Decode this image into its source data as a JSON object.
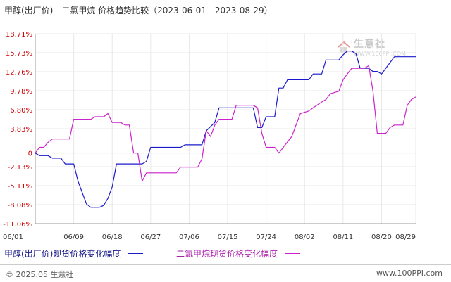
{
  "title": "甲醇(出厂价) - 二氯甲烷 价格趋势比较（2023-06-01 - 2023-08-29）",
  "legend": {
    "series1": "甲醇(出厂价)现货价格变化幅度",
    "series2": "二氯甲烷现货价格变化幅度"
  },
  "watermark": {
    "brand_cn": "生意社",
    "brand_en": "WWW.100PPI.COM"
  },
  "footer": {
    "copyright": "© 2025.05 生意社",
    "site": "www.100PPI.com"
  },
  "colors": {
    "series1": "#1a1acc",
    "series2": "#cc22cc",
    "ytick_text": "#cc0000",
    "axis": "#999999",
    "grid": "#e8e8e8"
  },
  "chart_data": {
    "type": "line",
    "title": "甲醇(出厂价) - 二氯甲烷 价格趋势比较（2023-06-01 - 2023-08-29）",
    "xlabel": "",
    "ylabel": "",
    "xlim": [
      "2023-06-01",
      "2023-08-29"
    ],
    "ylim": [
      -11.06,
      18.71
    ],
    "grid": true,
    "legend_placement": "bottom",
    "x_ticks": [
      "06/01",
      "06/09",
      "06/18",
      "06/27",
      "07/06",
      "07/15",
      "07/24",
      "08/02",
      "08/11",
      "08/20",
      "08/29"
    ],
    "y_ticks": [
      "18.71%",
      "15.73%",
      "12.76%",
      "9.78%",
      "6.80%",
      "3.83%",
      "0",
      "-2.13%",
      "-5.11%",
      "-8.08%",
      "-11.06%"
    ],
    "y_tick_values": [
      18.71,
      15.73,
      12.76,
      9.78,
      6.8,
      3.83,
      0,
      -2.13,
      -5.11,
      -8.08,
      -11.06
    ],
    "series": [
      {
        "name": "甲醇(出厂价)现货价格变化幅度",
        "points": [
          [
            "2023-06-01",
            0
          ],
          [
            "2023-06-02",
            -0.4
          ],
          [
            "2023-06-04",
            -0.4
          ],
          [
            "2023-06-05",
            -0.8
          ],
          [
            "2023-06-07",
            -0.8
          ],
          [
            "2023-06-08",
            -1.7
          ],
          [
            "2023-06-10",
            -1.7
          ],
          [
            "2023-06-11",
            -4.4
          ],
          [
            "2023-06-12",
            -6.2
          ],
          [
            "2023-06-13",
            -8.0
          ],
          [
            "2023-06-14",
            -8.5
          ],
          [
            "2023-06-16",
            -8.5
          ],
          [
            "2023-06-17",
            -8.2
          ],
          [
            "2023-06-18",
            -7.1
          ],
          [
            "2023-06-19",
            -5.3
          ],
          [
            "2023-06-20",
            -1.7
          ],
          [
            "2023-06-26",
            -1.7
          ],
          [
            "2023-06-27",
            -1.3
          ],
          [
            "2023-06-28",
            0.9
          ],
          [
            "2023-07-05",
            0.9
          ],
          [
            "2023-07-06",
            1.3
          ],
          [
            "2023-07-10",
            1.3
          ],
          [
            "2023-07-11",
            3.5
          ],
          [
            "2023-07-13",
            4.8
          ],
          [
            "2023-07-14",
            7.1
          ],
          [
            "2023-07-19",
            7.1
          ],
          [
            "2023-07-22",
            7.1
          ],
          [
            "2023-07-23",
            4.0
          ],
          [
            "2023-07-24",
            4.0
          ],
          [
            "2023-07-25",
            5.7
          ],
          [
            "2023-07-27",
            5.7
          ],
          [
            "2023-07-28",
            10.2
          ],
          [
            "2023-07-29",
            10.2
          ],
          [
            "2023-07-30",
            11.5
          ],
          [
            "2023-08-04",
            11.5
          ],
          [
            "2023-08-05",
            12.4
          ],
          [
            "2023-08-07",
            12.4
          ],
          [
            "2023-08-08",
            14.6
          ],
          [
            "2023-08-11",
            14.6
          ],
          [
            "2023-08-12",
            15.4
          ],
          [
            "2023-08-13",
            16.0
          ],
          [
            "2023-08-14",
            16.0
          ],
          [
            "2023-08-15",
            15.6
          ],
          [
            "2023-08-16",
            13.3
          ],
          [
            "2023-08-18",
            13.3
          ],
          [
            "2023-08-19",
            12.8
          ],
          [
            "2023-08-20",
            12.8
          ],
          [
            "2023-08-21",
            12.4
          ],
          [
            "2023-08-22",
            13.3
          ],
          [
            "2023-08-23",
            14.2
          ],
          [
            "2023-08-24",
            15.1
          ],
          [
            "2023-08-29",
            15.1
          ]
        ]
      },
      {
        "name": "二氯甲烷现货价格变化幅度",
        "points": [
          [
            "2023-06-01",
            0
          ],
          [
            "2023-06-02",
            0.9
          ],
          [
            "2023-06-03",
            0.9
          ],
          [
            "2023-06-04",
            1.7
          ],
          [
            "2023-06-05",
            2.2
          ],
          [
            "2023-06-09",
            2.2
          ],
          [
            "2023-06-10",
            5.3
          ],
          [
            "2023-06-14",
            5.3
          ],
          [
            "2023-06-15",
            5.7
          ],
          [
            "2023-06-17",
            5.7
          ],
          [
            "2023-06-18",
            6.2
          ],
          [
            "2023-06-19",
            4.8
          ],
          [
            "2023-06-21",
            4.8
          ],
          [
            "2023-06-22",
            4.4
          ],
          [
            "2023-06-23",
            4.4
          ],
          [
            "2023-06-24",
            0
          ],
          [
            "2023-06-25",
            0
          ],
          [
            "2023-06-26",
            -4.4
          ],
          [
            "2023-06-27",
            -3.1
          ],
          [
            "2023-06-28",
            -3.1
          ],
          [
            "2023-07-04",
            -3.1
          ],
          [
            "2023-07-05",
            -2.2
          ],
          [
            "2023-07-09",
            -2.2
          ],
          [
            "2023-07-10",
            -0.9
          ],
          [
            "2023-07-11",
            3.5
          ],
          [
            "2023-07-12",
            2.6
          ],
          [
            "2023-07-13",
            4.4
          ],
          [
            "2023-07-14",
            5.3
          ],
          [
            "2023-07-17",
            5.3
          ],
          [
            "2023-07-18",
            7.5
          ],
          [
            "2023-07-22",
            7.5
          ],
          [
            "2023-07-23",
            7.1
          ],
          [
            "2023-07-24",
            3.1
          ],
          [
            "2023-07-25",
            0.9
          ],
          [
            "2023-07-26",
            0.9
          ],
          [
            "2023-07-27",
            0.9
          ],
          [
            "2023-07-28",
            0
          ],
          [
            "2023-07-29",
            0.9
          ],
          [
            "2023-07-31",
            2.6
          ],
          [
            "2023-08-01",
            4.4
          ],
          [
            "2023-08-02",
            6.2
          ],
          [
            "2023-08-04",
            6.6
          ],
          [
            "2023-08-05",
            7.1
          ],
          [
            "2023-08-07",
            8.0
          ],
          [
            "2023-08-08",
            8.4
          ],
          [
            "2023-08-09",
            9.3
          ],
          [
            "2023-08-11",
            9.7
          ],
          [
            "2023-08-12",
            11.5
          ],
          [
            "2023-08-13",
            12.4
          ],
          [
            "2023-08-14",
            13.3
          ],
          [
            "2023-08-17",
            13.3
          ],
          [
            "2023-08-18",
            13.7
          ],
          [
            "2023-08-19",
            9.7
          ],
          [
            "2023-08-20",
            3.1
          ],
          [
            "2023-08-22",
            3.1
          ],
          [
            "2023-08-23",
            4.0
          ],
          [
            "2023-08-24",
            4.4
          ],
          [
            "2023-08-26",
            4.4
          ],
          [
            "2023-08-27",
            7.5
          ],
          [
            "2023-08-28",
            8.4
          ],
          [
            "2023-08-29",
            8.8
          ]
        ]
      }
    ]
  }
}
